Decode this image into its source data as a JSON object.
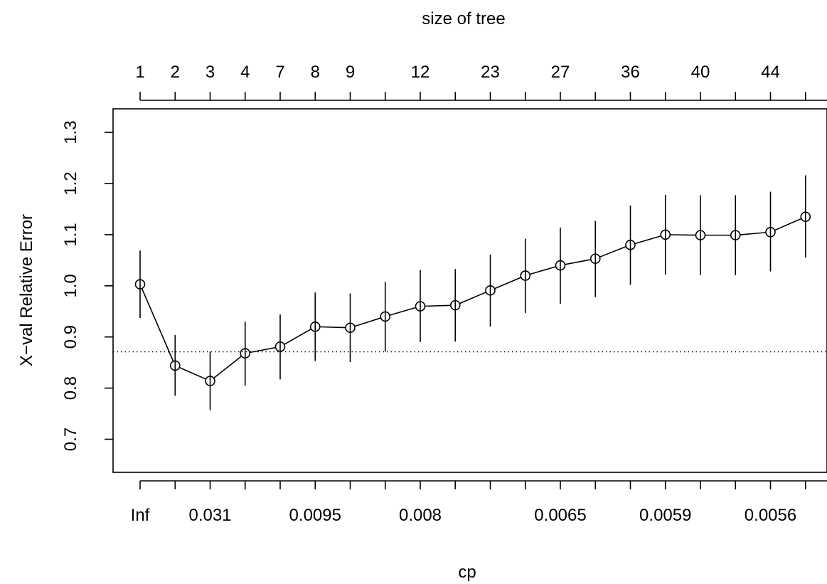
{
  "chart_data": {
    "type": "line",
    "title": "",
    "xlabel": "cp",
    "ylabel": "X−val Relative Error",
    "top_axis_label": "size of tree",
    "ylim": [
      0.65,
      1.35
    ],
    "y_ticks": [
      "0.7",
      "0.8",
      "0.9",
      "1.0",
      "1.1",
      "1.2",
      "1.3"
    ],
    "bottom_tick_labels": [
      "Inf",
      "",
      "0.031",
      "",
      "",
      "0.0095",
      "",
      "",
      "0.008",
      "",
      "",
      "",
      "0.0065",
      "",
      "",
      "0.0059",
      "",
      "",
      "0.0056",
      "",
      ""
    ],
    "top_tick_labels": [
      "1",
      "2",
      "3",
      "4",
      "7",
      "8",
      "9",
      "",
      "12",
      "",
      "23",
      "",
      "27",
      "",
      "36",
      "",
      "40",
      "",
      "44",
      "",
      ""
    ],
    "reference_line": 0.871,
    "series": [
      {
        "values": [
          1.003,
          0.844,
          0.814,
          0.868,
          0.881,
          0.92,
          0.918,
          0.94,
          0.96,
          0.962,
          0.991,
          1.02,
          1.04,
          1.053,
          1.08,
          1.1,
          1.099,
          1.099,
          1.105,
          1.135
        ],
        "error_lower": [
          0.937,
          0.785,
          0.757,
          0.805,
          0.817,
          0.853,
          0.851,
          0.871,
          0.89,
          0.891,
          0.92,
          0.947,
          0.965,
          0.978,
          1.002,
          1.022,
          1.021,
          1.021,
          1.028,
          1.055
        ],
        "error_upper": [
          1.069,
          0.904,
          0.871,
          0.93,
          0.944,
          0.987,
          0.985,
          1.008,
          1.031,
          1.033,
          1.061,
          1.092,
          1.114,
          1.127,
          1.157,
          1.178,
          1.177,
          1.177,
          1.184,
          1.216
        ]
      }
    ],
    "grid": false,
    "legend": "none"
  }
}
